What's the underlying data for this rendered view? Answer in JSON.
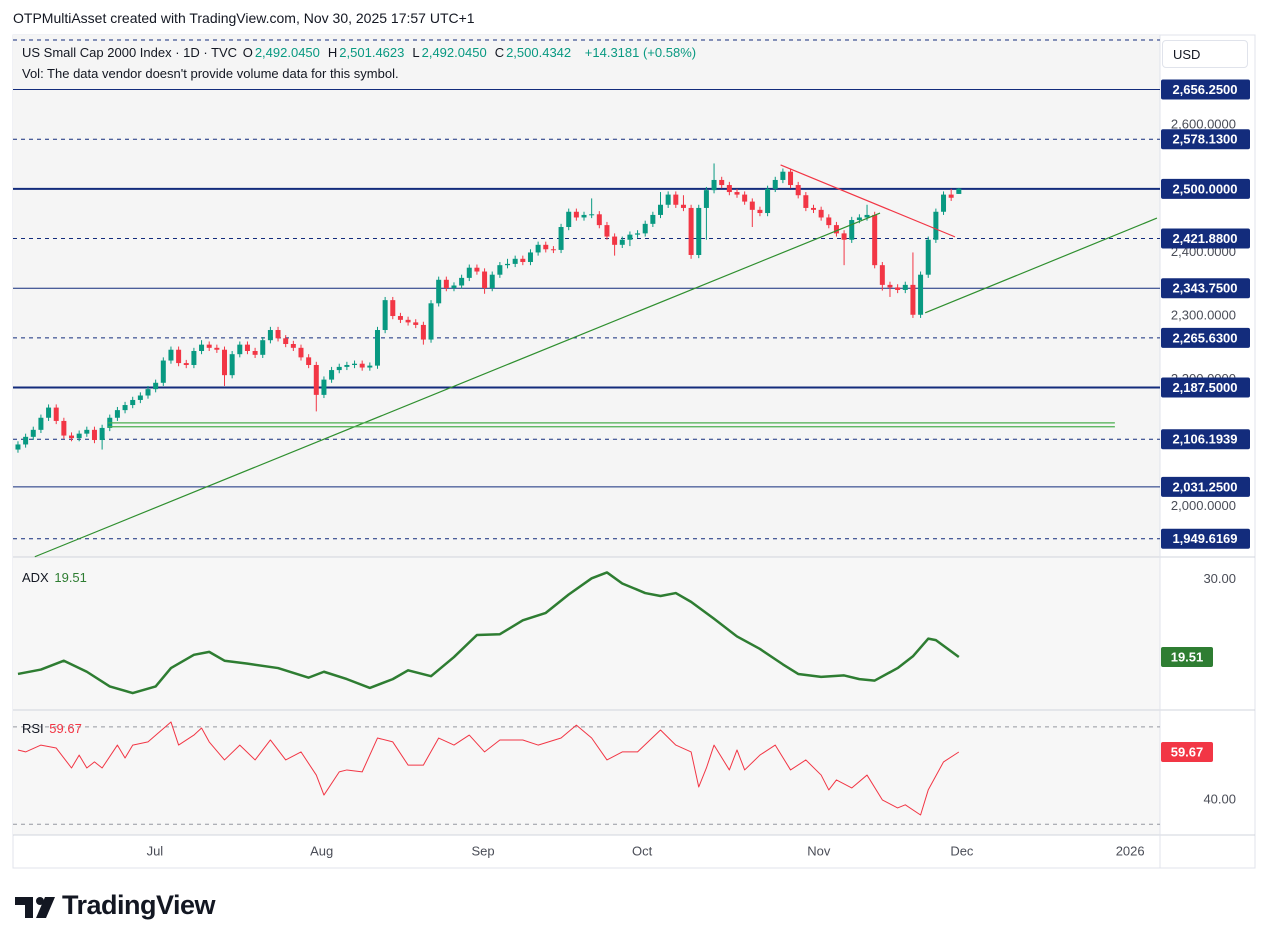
{
  "header": {
    "caption": "OTPMultiAsset created with TradingView.com, Nov 30, 2025 17:57 UTC+1"
  },
  "footer": {
    "brand": "TradingView"
  },
  "chart_data": [
    {
      "type": "candlestick",
      "title": "US Small Cap 2000 Index · 1D · TVC",
      "ohlc_legend": [
        {
          "label": "O",
          "value": "2,492.0450"
        },
        {
          "label": "H",
          "value": "2,501.4623"
        },
        {
          "label": "L",
          "value": "2,492.0450"
        },
        {
          "label": "C",
          "value": "2,500.4342"
        }
      ],
      "change": "+14.3181 (+0.58%)",
      "note": "Vol: The data vendor doesn't provide volume data for this symbol.",
      "currency": "USD",
      "up_color": "#089981",
      "down_color": "#f23645",
      "xlim": [
        -0.65,
        149.3
      ],
      "ylim": [
        1921,
        2742
      ],
      "yticks": [
        {
          "value": 2600,
          "label": "2,600.0000"
        },
        {
          "value": 2400,
          "label": "2,400.0000"
        },
        {
          "value": 2300,
          "label": "2,300.0000"
        },
        {
          "value": 2200,
          "label": "2,200.0000"
        },
        {
          "value": 2000,
          "label": "2,000.0000"
        }
      ],
      "line_color": "#132c7c",
      "price_lines": [
        {
          "value": 2656.25,
          "label": "2,656.2500",
          "style": "solid",
          "width": 1
        },
        {
          "value": 2578.13,
          "label": "2,578.1300",
          "style": "dashed",
          "width": 1
        },
        {
          "value": 2500,
          "label": "2,500.0000",
          "style": "solid",
          "width": 2
        },
        {
          "value": 2421.88,
          "label": "2,421.8800",
          "style": "dashed",
          "width": 1
        },
        {
          "value": 2343.75,
          "label": "2,343.7500",
          "style": "solid",
          "width": 1
        },
        {
          "value": 2265.63,
          "label": "2,265.6300",
          "style": "dashed",
          "width": 1
        },
        {
          "value": 2187.5,
          "label": "2,187.5000",
          "style": "solid",
          "width": 2
        },
        {
          "value": 2106.1939,
          "label": "2,106.1939",
          "style": "dashed",
          "width": 1
        },
        {
          "value": 2031.25,
          "label": "2,031.2500",
          "style": "solid",
          "width": 1
        },
        {
          "value": 1949.6169,
          "label": "1,949.6169",
          "style": "dashed",
          "width": 1
        }
      ],
      "trendlines": [
        {
          "x": [
            2.2,
            112.7
          ],
          "y": [
            1921.4,
            2462
          ],
          "color": "#2f8f2f"
        },
        {
          "x": [
            118.6,
            148.9
          ],
          "y": [
            2305,
            2454
          ],
          "color": "#2f8f2f"
        },
        {
          "x": [
            99.7,
            122.5
          ],
          "y": [
            2537.7,
            2424.5
          ],
          "color": "#f23645"
        },
        {
          "x": [
            11.8,
            143.4
          ],
          "y": [
            2132,
            2132
          ],
          "color": "#4caf50"
        },
        {
          "x": [
            11.8,
            143.4
          ],
          "y": [
            2125.8,
            2125.8
          ],
          "color": "#4caf50"
        }
      ],
      "open": [
        2090,
        2098,
        2110,
        2121,
        2140,
        2156,
        2135,
        2112,
        2108,
        2115,
        2121,
        2105,
        2124,
        2140,
        2152,
        2160,
        2168,
        2175,
        2185,
        2195,
        2230,
        2247,
        2226,
        2223,
        2245,
        2255,
        2250,
        2247,
        2207,
        2240,
        2255,
        2245,
        2239,
        2262,
        2278,
        2265,
        2256,
        2250,
        2235,
        2223,
        2176,
        2200,
        2215,
        2220,
        2223,
        2225,
        2219,
        2222,
        2278,
        2325,
        2300,
        2294,
        2290,
        2286,
        2263,
        2320,
        2357,
        2344,
        2348,
        2360,
        2376,
        2370,
        2344,
        2365,
        2380,
        2382,
        2390,
        2385,
        2400,
        2412,
        2405,
        2404,
        2440,
        2464,
        2455,
        2459,
        2460,
        2443,
        2425,
        2412,
        2420,
        2428,
        2430,
        2445,
        2459,
        2475,
        2491,
        2475,
        2470,
        2396,
        2470,
        2498,
        2514,
        2506,
        2495,
        2491,
        2480,
        2467,
        2462,
        2500,
        2514,
        2527,
        2506,
        2490,
        2470,
        2467,
        2455,
        2443,
        2430,
        2420,
        2451,
        2455,
        2459,
        2380,
        2349,
        2345,
        2341,
        2349,
        2302,
        2365,
        2420,
        2464,
        2491,
        2492.045
      ],
      "high": [
        2103,
        2115,
        2126,
        2145,
        2161,
        2161,
        2140,
        2117,
        2120,
        2126,
        2126,
        2129,
        2145,
        2157,
        2165,
        2173,
        2180,
        2190,
        2200,
        2235,
        2252,
        2252,
        2231,
        2250,
        2262,
        2260,
        2255,
        2252,
        2245,
        2260,
        2260,
        2250,
        2267,
        2283,
        2283,
        2270,
        2261,
        2255,
        2240,
        2228,
        2205,
        2220,
        2225,
        2228,
        2230,
        2230,
        2227,
        2283,
        2330,
        2330,
        2305,
        2299,
        2295,
        2291,
        2325,
        2362,
        2362,
        2353,
        2365,
        2381,
        2381,
        2375,
        2370,
        2385,
        2390,
        2395,
        2395,
        2405,
        2417,
        2417,
        2410,
        2445,
        2469,
        2469,
        2464,
        2485,
        2465,
        2448,
        2430,
        2425,
        2433,
        2435,
        2450,
        2464,
        2495,
        2496,
        2496,
        2490,
        2475,
        2475,
        2503,
        2540,
        2519,
        2511,
        2500,
        2496,
        2485,
        2472,
        2505,
        2519,
        2532,
        2532,
        2511,
        2495,
        2475,
        2472,
        2460,
        2448,
        2435,
        2456,
        2460,
        2475,
        2464,
        2385,
        2354,
        2350,
        2354,
        2400,
        2370,
        2425,
        2469,
        2496,
        2500,
        2501.4623
      ],
      "low": [
        2085,
        2093,
        2105,
        2116,
        2135,
        2130,
        2107,
        2103,
        2103,
        2110,
        2100,
        2090,
        2119,
        2135,
        2147,
        2155,
        2163,
        2170,
        2180,
        2190,
        2225,
        2221,
        2218,
        2218,
        2240,
        2245,
        2242,
        2190,
        2202,
        2235,
        2240,
        2234,
        2234,
        2257,
        2260,
        2251,
        2245,
        2230,
        2218,
        2150,
        2171,
        2195,
        2210,
        2215,
        2218,
        2214,
        2214,
        2217,
        2273,
        2295,
        2289,
        2285,
        2281,
        2255,
        2258,
        2315,
        2339,
        2339,
        2343,
        2355,
        2365,
        2335,
        2339,
        2360,
        2375,
        2377,
        2380,
        2380,
        2395,
        2400,
        2399,
        2399,
        2435,
        2450,
        2450,
        2454,
        2438,
        2420,
        2395,
        2407,
        2410,
        2423,
        2425,
        2440,
        2454,
        2470,
        2470,
        2465,
        2390,
        2391,
        2420,
        2493,
        2501,
        2490,
        2486,
        2475,
        2440,
        2457,
        2457,
        2495,
        2509,
        2501,
        2485,
        2465,
        2462,
        2450,
        2438,
        2425,
        2380,
        2415,
        2446,
        2450,
        2375,
        2340,
        2330,
        2336,
        2336,
        2297,
        2297,
        2360,
        2415,
        2459,
        2481,
        2492.045
      ],
      "close": [
        2098,
        2110,
        2121,
        2140,
        2156,
        2135,
        2112,
        2108,
        2115,
        2121,
        2105,
        2124,
        2140,
        2152,
        2160,
        2168,
        2175,
        2185,
        2195,
        2230,
        2247,
        2226,
        2223,
        2245,
        2255,
        2250,
        2247,
        2207,
        2240,
        2255,
        2245,
        2239,
        2262,
        2278,
        2265,
        2256,
        2250,
        2235,
        2223,
        2176,
        2200,
        2215,
        2220,
        2223,
        2225,
        2219,
        2222,
        2278,
        2325,
        2300,
        2294,
        2290,
        2286,
        2263,
        2320,
        2357,
        2344,
        2348,
        2360,
        2376,
        2370,
        2344,
        2365,
        2380,
        2382,
        2390,
        2385,
        2400,
        2412,
        2405,
        2404,
        2440,
        2464,
        2455,
        2459,
        2460,
        2443,
        2425,
        2412,
        2420,
        2428,
        2430,
        2445,
        2459,
        2475,
        2491,
        2475,
        2470,
        2396,
        2470,
        2498,
        2514,
        2506,
        2495,
        2491,
        2480,
        2467,
        2462,
        2500,
        2514,
        2527,
        2506,
        2490,
        2470,
        2467,
        2455,
        2443,
        2430,
        2420,
        2451,
        2455,
        2459,
        2380,
        2349,
        2345,
        2341,
        2349,
        2302,
        2365,
        2420,
        2464,
        2491,
        2486,
        2500.4342
      ]
    },
    {
      "type": "line",
      "xlim": [
        -0.65,
        149.3
      ],
      "ylim": [
        12.3,
        33.1
      ],
      "yticks": [
        {
          "value": 30,
          "label": "30.00"
        }
      ],
      "series": [
        {
          "name": "ADX",
          "color": "#2e7d32",
          "width": 2.5,
          "last_value_label": "19.51",
          "x": [
            0,
            3,
            6,
            9,
            12,
            15,
            18,
            20,
            23,
            25,
            27,
            30,
            34,
            38,
            40,
            43,
            46,
            49,
            51,
            54,
            57,
            60,
            63,
            66,
            69,
            72,
            75,
            77,
            79,
            82,
            84,
            86,
            88,
            91,
            94,
            97,
            100,
            102,
            105,
            108,
            110,
            112,
            115,
            117,
            119,
            120,
            123
          ],
          "values": [
            17.2,
            17.8,
            19.0,
            17.5,
            15.5,
            14.6,
            15.5,
            18.0,
            19.8,
            20.2,
            19.0,
            18.6,
            18.0,
            16.7,
            17.5,
            16.5,
            15.3,
            16.5,
            17.7,
            16.9,
            19.5,
            22.5,
            22.6,
            24.5,
            25.5,
            28.0,
            30.2,
            31.0,
            29.5,
            28.2,
            27.8,
            28.2,
            27.0,
            24.7,
            22.3,
            20.6,
            18.5,
            17.2,
            16.8,
            17.0,
            16.5,
            16.3,
            18.0,
            19.6,
            22.0,
            21.8,
            19.51
          ]
        }
      ]
    },
    {
      "type": "line",
      "xlim": [
        -0.65,
        149.3
      ],
      "ylim": [
        25.6,
        76.9
      ],
      "yticks": [
        {
          "value": 40,
          "label": "40.00"
        }
      ],
      "levels": [
        70,
        30
      ],
      "xticks": [
        {
          "value": 17.9,
          "label": "Jul"
        },
        {
          "value": 39.7,
          "label": "Aug"
        },
        {
          "value": 60.8,
          "label": "Sep"
        },
        {
          "value": 81.6,
          "label": "Oct"
        },
        {
          "value": 104.7,
          "label": "Nov"
        },
        {
          "value": 123.4,
          "label": "Dec"
        },
        {
          "value": 145.4,
          "label": "2026"
        }
      ],
      "series": [
        {
          "name": "RSI",
          "color": "#f23645",
          "width": 1,
          "last_value_label": "59.67",
          "x": [
            0,
            1,
            3,
            5,
            7,
            8,
            9,
            10,
            11,
            13,
            14,
            15,
            17,
            20,
            21,
            23,
            24,
            25,
            27,
            29,
            31,
            33,
            35,
            37,
            39,
            40,
            42,
            43,
            45,
            47,
            49,
            51,
            53,
            55,
            57,
            59,
            61,
            63,
            66,
            68,
            71,
            73,
            75,
            77,
            79,
            81,
            84,
            86,
            88,
            89,
            90,
            91,
            93,
            94,
            95,
            97,
            99,
            101,
            103,
            105,
            106,
            107,
            109,
            111,
            113,
            115,
            116,
            118,
            119,
            121,
            123
          ],
          "values": [
            60.5,
            59.7,
            62.5,
            61.3,
            53.1,
            58.4,
            53.1,
            55.6,
            53.1,
            62.5,
            57.2,
            62.5,
            63.8,
            72.0,
            62.5,
            66.6,
            69.5,
            63.8,
            56.4,
            62.5,
            56.4,
            64.6,
            56.4,
            59.7,
            50.2,
            42.0,
            51.5,
            52.3,
            51.5,
            65.4,
            63.8,
            54.3,
            54.3,
            65.4,
            62.5,
            66.6,
            59.7,
            64.6,
            64.6,
            62.5,
            65.4,
            70.7,
            65.4,
            56.4,
            59.7,
            59.7,
            68.7,
            62.5,
            59.7,
            45.3,
            53.1,
            62.5,
            52.3,
            60.5,
            52.3,
            58.4,
            62.5,
            52.3,
            56.4,
            50.2,
            44.1,
            48.2,
            44.9,
            50.2,
            40.0,
            36.7,
            38.0,
            33.8,
            44.1,
            55.6,
            59.67
          ]
        }
      ]
    }
  ]
}
